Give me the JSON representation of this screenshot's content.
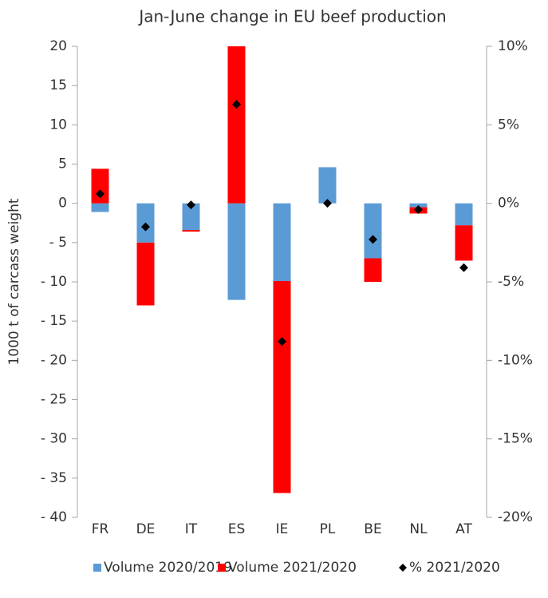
{
  "chart_data": {
    "type": "bar",
    "stacked": true,
    "title": "Jan-June change in EU beef production",
    "y_label": "1000 t of carcass weight",
    "categories": [
      "FR",
      "DE",
      "IT",
      "ES",
      "IE",
      "PL",
      "BE",
      "NL",
      "AT"
    ],
    "series": [
      {
        "name": "Volume 2020/2019",
        "color": "#5b9bd5",
        "values": [
          -1.1,
          -5.0,
          -3.4,
          -12.3,
          -9.9,
          4.6,
          -7.0,
          -0.5,
          -2.8
        ]
      },
      {
        "name": "Volume 2021/2020",
        "color": "#ff0000",
        "values": [
          4.4,
          -8.0,
          -0.2,
          20,
          -27.0,
          0,
          -3.0,
          -0.8,
          -4.5
        ]
      },
      {
        "name": "% 2021/2020",
        "color": "#000000",
        "axis": "y2",
        "marker": "diamond",
        "values": [
          0.6,
          -1.5,
          -0.1,
          6.3,
          -8.8,
          0,
          -2.3,
          -0.4,
          -4.1
        ]
      }
    ],
    "ylim": [
      -40,
      20
    ],
    "yticks": [
      {
        "value": -40,
        "label": "- 40"
      },
      {
        "value": -35,
        "label": "- 35"
      },
      {
        "value": -30,
        "label": "- 30"
      },
      {
        "value": -25,
        "label": "- 25"
      },
      {
        "value": -20,
        "label": "- 20"
      },
      {
        "value": -15,
        "label": "- 15"
      },
      {
        "value": -10,
        "label": "- 10"
      },
      {
        "value": -5,
        "label": "- 5"
      },
      0,
      5,
      10,
      15,
      20
    ],
    "y2lim": [
      -20,
      10
    ],
    "y2ticks": [
      {
        "value": -20,
        "label": "-20%"
      },
      {
        "value": -15,
        "label": "-15%"
      },
      {
        "value": -10,
        "label": "-10%"
      },
      {
        "value": -5,
        "label": "-5%"
      },
      {
        "value": 0,
        "label": "0%"
      },
      {
        "value": 5,
        "label": "5%"
      },
      {
        "value": 10,
        "label": "10%"
      }
    ],
    "legend": "bottom"
  }
}
